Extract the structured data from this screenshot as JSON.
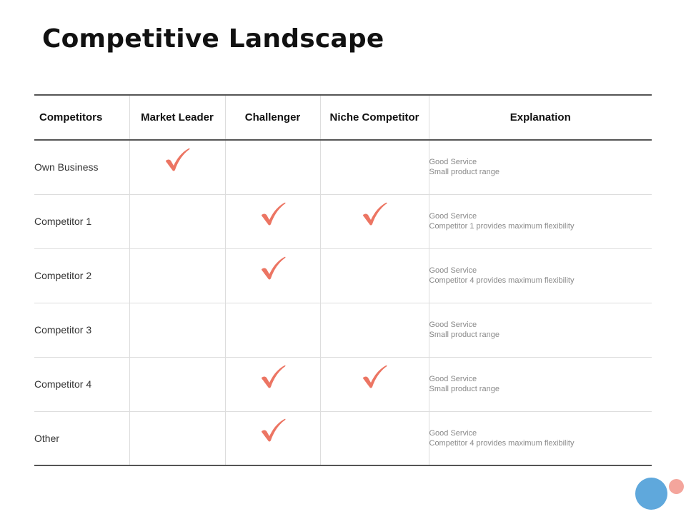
{
  "title": "Competitive Landscape",
  "colors": {
    "check": "#ec7563",
    "circle_blue": "#5fa8dc",
    "circle_pink": "#f4a59c"
  },
  "table": {
    "headers": [
      "Competitors",
      "Market Leader",
      "Challenger",
      "Niche Competitor",
      "Explanation"
    ],
    "rows": [
      {
        "name": "Own Business",
        "marks": [
          true,
          false,
          false
        ],
        "explanation": [
          "Good Service",
          "Small product range"
        ]
      },
      {
        "name": "Competitor 1",
        "marks": [
          false,
          true,
          true
        ],
        "explanation": [
          "Good Service",
          "Competitor 1 provides maximum flexibility"
        ]
      },
      {
        "name": "Competitor 2",
        "marks": [
          false,
          true,
          false
        ],
        "explanation": [
          "Good Service",
          "Competitor 4 provides maximum flexibility"
        ]
      },
      {
        "name": "Competitor 3",
        "marks": [
          false,
          false,
          false
        ],
        "explanation": [
          "Good Service",
          "Small product range"
        ]
      },
      {
        "name": "Competitor 4",
        "marks": [
          false,
          true,
          true
        ],
        "explanation": [
          "Good Service",
          "Small product range"
        ]
      },
      {
        "name": "Other",
        "marks": [
          false,
          true,
          false
        ],
        "explanation": [
          "Good Service",
          "Competitor 4 provides maximum flexibility"
        ]
      }
    ]
  },
  "icons": {
    "check": "check-icon"
  }
}
